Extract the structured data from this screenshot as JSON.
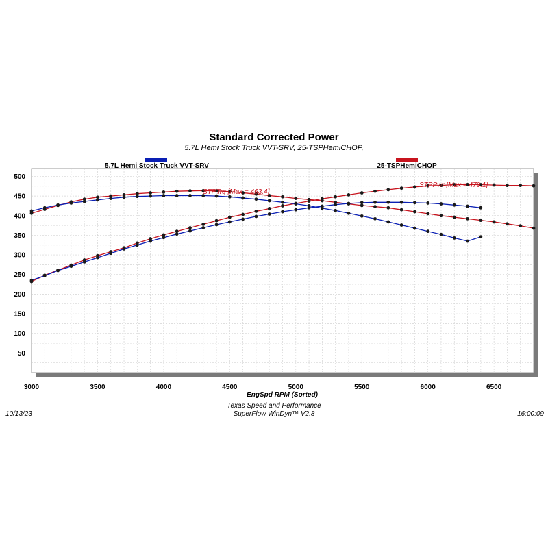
{
  "chart_data": {
    "type": "line",
    "title": "Standard Corrected Power",
    "subtitle": "5.7L Hemi Stock Truck VVT-SRV, 25-TSPHemiCHOP,",
    "xlabel": "EngSpd  RPM   (Sorted)",
    "xlim": [
      3000,
      6800
    ],
    "ylim": [
      0,
      520
    ],
    "xticks": [
      3000,
      3500,
      4000,
      4500,
      5000,
      5500,
      6000,
      6500
    ],
    "yticks": [
      50,
      100,
      150,
      200,
      250,
      300,
      350,
      400,
      450,
      500
    ],
    "grid": true,
    "legend": [
      {
        "name": "5.7L Hemi Stock Truck VVT-SRV",
        "color": "#0a1fb4"
      },
      {
        "name": "25-TSPHemiCHOP",
        "color": "#c8141e"
      }
    ],
    "annotations": [
      {
        "text": "STPTrq [Max = 463.4]",
        "color": "#c8141e"
      },
      {
        "text": "STPPwr [Max = 479.1]",
        "color": "#c8141e"
      }
    ],
    "series": [
      {
        "run": "5.7L Hemi Stock Truck VVT-SRV",
        "quantity": "STPTrq",
        "color": "#0a1fb4",
        "x": [
          3000,
          3100,
          3200,
          3300,
          3400,
          3500,
          3600,
          3700,
          3800,
          3900,
          4000,
          4100,
          4200,
          4300,
          4400,
          4500,
          4600,
          4700,
          4800,
          4900,
          5000,
          5100,
          5200,
          5300,
          5400,
          5500,
          5600,
          5700,
          5800,
          5900,
          6000,
          6100,
          6200,
          6300,
          6400
        ],
        "y": [
          412,
          420,
          427,
          432,
          436,
          440,
          444,
          447,
          449,
          450,
          451,
          451,
          451,
          451,
          450,
          448,
          445,
          442,
          438,
          434,
          430,
          425,
          419,
          413,
          406,
          399,
          392,
          384,
          376,
          368,
          360,
          352,
          343,
          335,
          346
        ]
      },
      {
        "run": "5.7L Hemi Stock Truck VVT-SRV",
        "quantity": "STPPwr",
        "color": "#0a1fb4",
        "x": [
          3000,
          3100,
          3200,
          3300,
          3400,
          3500,
          3600,
          3700,
          3800,
          3900,
          4000,
          4100,
          4200,
          4300,
          4400,
          4500,
          4600,
          4700,
          4800,
          4900,
          5000,
          5100,
          5200,
          5300,
          5400,
          5500,
          5600,
          5700,
          5800,
          5900,
          6000,
          6100,
          6200,
          6300,
          6400
        ],
        "y": [
          235,
          247,
          260,
          271,
          282,
          293,
          304,
          315,
          325,
          335,
          344,
          353,
          361,
          369,
          377,
          384,
          391,
          398,
          404,
          410,
          415,
          420,
          424,
          428,
          431,
          433,
          434,
          434,
          434,
          433,
          432,
          430,
          427,
          424,
          420
        ]
      },
      {
        "run": "25-TSPHemiCHOP",
        "quantity": "STPTrq",
        "color": "#c8141e",
        "x": [
          3000,
          3100,
          3200,
          3300,
          3400,
          3500,
          3600,
          3700,
          3800,
          3900,
          4000,
          4100,
          4200,
          4300,
          4400,
          4500,
          4600,
          4700,
          4800,
          4900,
          5000,
          5100,
          5200,
          5300,
          5400,
          5500,
          5600,
          5700,
          5800,
          5900,
          6000,
          6100,
          6200,
          6300,
          6400,
          6500,
          6600,
          6700,
          6800
        ],
        "y": [
          406,
          416,
          426,
          435,
          442,
          447,
          450,
          453,
          456,
          458,
          460,
          462,
          463,
          463.4,
          463,
          461,
          458,
          455,
          451,
          448,
          444,
          441,
          438,
          434,
          430,
          426,
          423,
          420,
          415,
          410,
          405,
          400,
          396,
          392,
          388,
          384,
          379,
          374,
          368
        ]
      },
      {
        "run": "25-TSPHemiCHOP",
        "quantity": "STPPwr",
        "color": "#c8141e",
        "x": [
          3000,
          3100,
          3200,
          3300,
          3400,
          3500,
          3600,
          3700,
          3800,
          3900,
          4000,
          4100,
          4200,
          4300,
          4400,
          4500,
          4600,
          4700,
          4800,
          4900,
          5000,
          5100,
          5200,
          5300,
          5400,
          5500,
          5600,
          5700,
          5800,
          5900,
          6000,
          6100,
          6200,
          6300,
          6400,
          6500,
          6600,
          6700,
          6800
        ],
        "y": [
          232,
          248,
          261,
          274,
          287,
          298,
          308,
          318,
          330,
          341,
          351,
          360,
          369,
          378,
          387,
          396,
          403,
          411,
          418,
          425,
          431,
          437,
          443,
          448,
          453,
          458,
          462,
          466,
          470,
          473,
          476,
          477,
          479,
          479.1,
          479,
          478,
          477,
          477,
          476
        ]
      }
    ]
  },
  "footer": {
    "date": "10/13/23",
    "company": "Texas Speed and Performance",
    "software": "SuperFlow WinDyn™  V2.8",
    "time": "16:00:09"
  }
}
